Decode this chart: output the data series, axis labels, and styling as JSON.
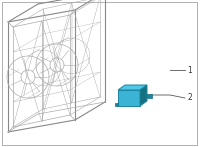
{
  "bg_color": "#ffffff",
  "border_color": "#b0b0b0",
  "line_color": "#aaaaaa",
  "line_color_dark": "#888888",
  "blue_color": "#3ab3d4",
  "blue_top": "#50c8e8",
  "blue_dark": "#1a85a0",
  "blue_shadow": "#157080",
  "label1": "1",
  "label2": "2",
  "shroud_lw": 0.5,
  "shroud_lw_thick": 0.8
}
